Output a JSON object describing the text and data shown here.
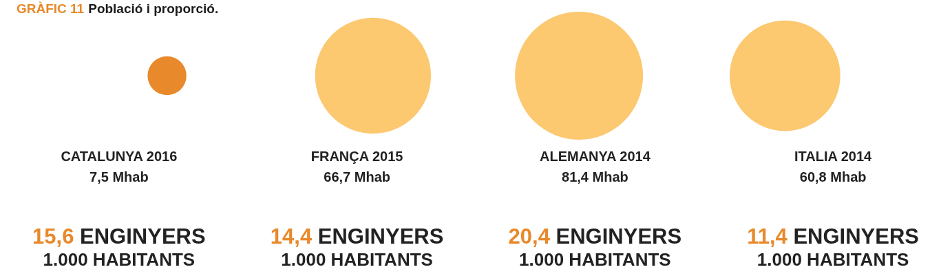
{
  "chart_data": {
    "type": "other",
    "title": "GRÀFIC 11",
    "subtitle": "Població i proporció.",
    "categories": [
      "CATALUNYA 2016",
      "FRANÇA 2015",
      "ALEMANYA 2014",
      "ITALIA 2014"
    ],
    "series": [
      {
        "values": [
          7.5,
          66.7,
          81.4,
          60.8
        ],
        "value_labels": [
          "7,5 Mhab",
          "66,7 Mhab",
          "81,4 Mhab",
          "60,8 Mhab"
        ],
        "colors": [
          "#e8892b",
          "#fcc870",
          "#fcc870",
          "#fcc870"
        ]
      }
    ],
    "annotations": [
      "15,6",
      "ENGINYERS",
      "1.000 HABITANTS",
      "14,4",
      "ENGINYERS",
      "1.000 HABITANTS",
      "20,4",
      "ENGINYERS",
      "1.000 HABITANTS",
      "11,4",
      "ENGINYERS",
      "1.000 HABITANTS"
    ]
  }
}
